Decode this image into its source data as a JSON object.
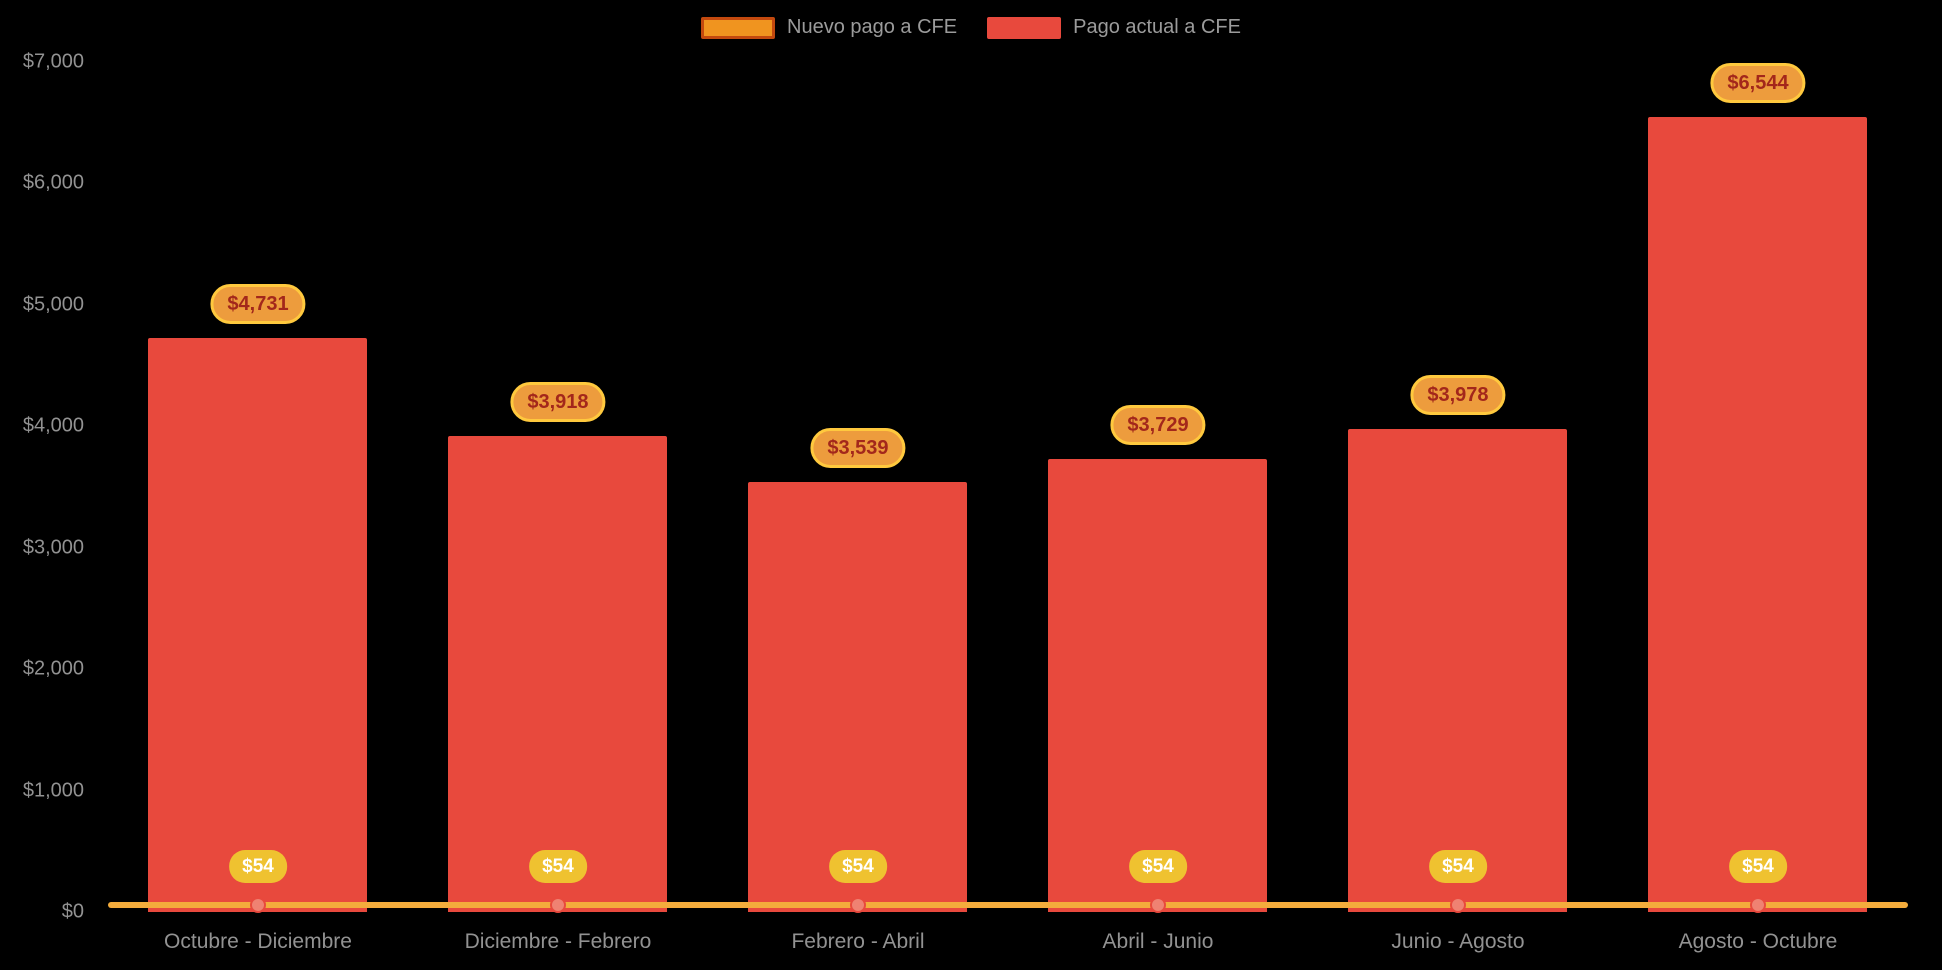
{
  "legend": {
    "items": [
      {
        "label": "Nuevo pago a CFE",
        "color": "#F0941F",
        "border": "#C3490E"
      },
      {
        "label": "Pago actual a CFE",
        "color": "#E8493D",
        "border": "#E8493D"
      }
    ]
  },
  "chart_data": {
    "type": "bar",
    "categories": [
      "Octubre - Diciembre",
      "Diciembre - Febrero",
      "Febrero - Abril",
      "Abril - Junio",
      "Junio - Agosto",
      "Agosto - Octubre"
    ],
    "series": [
      {
        "name": "Nuevo pago a CFE",
        "type": "line",
        "color": "#F4AC3C",
        "values": [
          54,
          54,
          54,
          54,
          54,
          54
        ],
        "point_labels": [
          "$54",
          "$54",
          "$54",
          "$54",
          "$54",
          "$54"
        ]
      },
      {
        "name": "Pago actual a CFE",
        "type": "bar",
        "color": "#E8493D",
        "values": [
          4731,
          3918,
          3539,
          3729,
          3978,
          6544
        ],
        "point_labels": [
          "$4,731",
          "$3,918",
          "$3,539",
          "$3,729",
          "$3,978",
          "$6,544"
        ]
      }
    ],
    "title": "",
    "xlabel": "",
    "ylabel": "",
    "ylim": [
      0,
      7000
    ],
    "yticks": [
      {
        "label": "$0",
        "value": 0
      },
      {
        "label": "$1,000",
        "value": 1000
      },
      {
        "label": "$2,000",
        "value": 2000
      },
      {
        "label": "$3,000",
        "value": 3000
      },
      {
        "label": "$4,000",
        "value": 4000
      },
      {
        "label": "$5,000",
        "value": 5000
      },
      {
        "label": "$6,000",
        "value": 6000
      },
      {
        "label": "$7,000",
        "value": 7000
      }
    ],
    "legend_position": "top",
    "grid": false,
    "background": "#000000"
  }
}
